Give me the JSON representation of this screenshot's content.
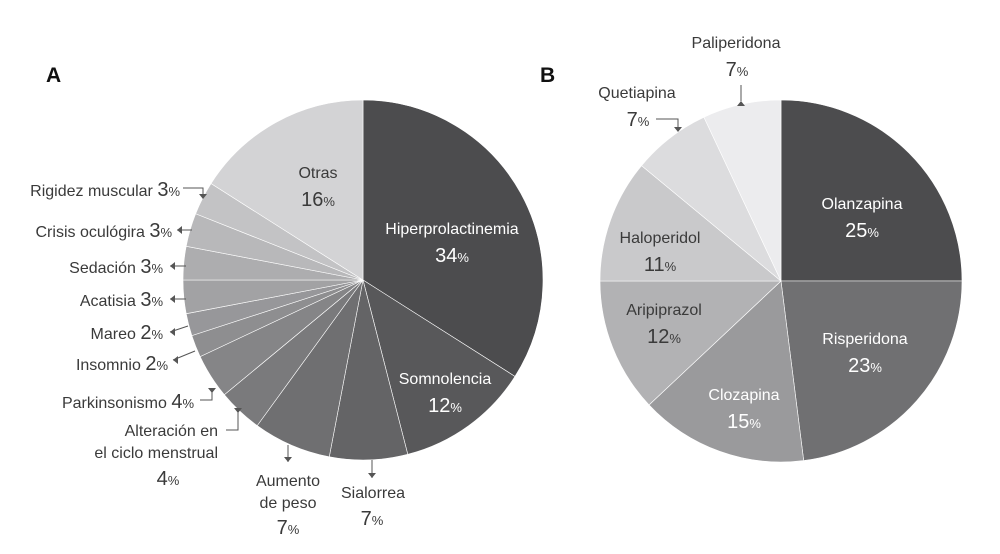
{
  "chart_data": [
    {
      "type": "pie",
      "panel": "A",
      "unit": "%",
      "slices": [
        {
          "label": "Hiperprolactinemia",
          "value": 34,
          "color": "#4c4c4e"
        },
        {
          "label": "Somnolencia",
          "value": 12,
          "color": "#58585a"
        },
        {
          "label": "Sialorrea",
          "value": 7,
          "color": "#646466"
        },
        {
          "label": "Aumento de peso",
          "value": 7,
          "color": "#6f6f71"
        },
        {
          "label": "Alteración en el ciclo menstrual",
          "value": 4,
          "color": "#7a7a7c"
        },
        {
          "label": "Parkinsonismo",
          "value": 4,
          "color": "#858587"
        },
        {
          "label": "Insomnio",
          "value": 2,
          "color": "#8e8e90"
        },
        {
          "label": "Mareo",
          "value": 2,
          "color": "#97979a"
        },
        {
          "label": "Acatisia",
          "value": 3,
          "color": "#a2a2a4"
        },
        {
          "label": "Sedación",
          "value": 3,
          "color": "#adadaf"
        },
        {
          "label": "Crisis oculógira",
          "value": 3,
          "color": "#b8b8ba"
        },
        {
          "label": "Rigidez muscular",
          "value": 3,
          "color": "#c3c3c5"
        },
        {
          "label": "Otras",
          "value": 16,
          "color": "#d3d3d5"
        }
      ]
    },
    {
      "type": "pie",
      "panel": "B",
      "unit": "%",
      "slices": [
        {
          "label": "Olanzapina",
          "value": 25,
          "color": "#4c4c4e"
        },
        {
          "label": "Risperidona",
          "value": 23,
          "color": "#707072"
        },
        {
          "label": "Clozapina",
          "value": 15,
          "color": "#9a9a9c"
        },
        {
          "label": "Aripiprazol",
          "value": 12,
          "color": "#b2b2b4"
        },
        {
          "label": "Haloperidol",
          "value": 11,
          "color": "#c9c9cb"
        },
        {
          "label": "Quetiapina",
          "value": 7,
          "color": "#dcdcde"
        },
        {
          "label": "Paliperidona",
          "value": 7,
          "color": "#ececee"
        }
      ]
    }
  ]
}
